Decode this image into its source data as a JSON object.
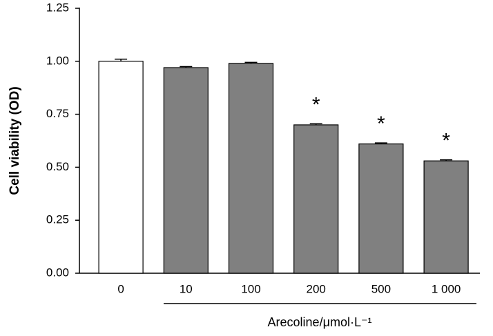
{
  "chart_data": {
    "type": "bar",
    "y_label": "Cell viability (OD)",
    "x_label": "Arecoline/μmol·L⁻¹",
    "categories": [
      "0",
      "10",
      "100",
      "200",
      "500",
      "1 000"
    ],
    "values": [
      1.0,
      0.97,
      0.99,
      0.7,
      0.61,
      0.53
    ],
    "errors": [
      0.01,
      0.005,
      0.005,
      0.005,
      0.005,
      0.005
    ],
    "colors": [
      "#ffffff",
      "#808080",
      "#808080",
      "#808080",
      "#808080",
      "#808080"
    ],
    "significance_labels": [
      null,
      null,
      null,
      "*",
      "*",
      "*"
    ],
    "ylim": [
      0,
      1.25
    ],
    "yticks": [
      {
        "value": 0,
        "label": "0.00"
      },
      0.25,
      {
        "value": 0.5,
        "label": "0.50"
      },
      0.75,
      {
        "value": 1,
        "label": "1.00"
      },
      1.25
    ]
  }
}
